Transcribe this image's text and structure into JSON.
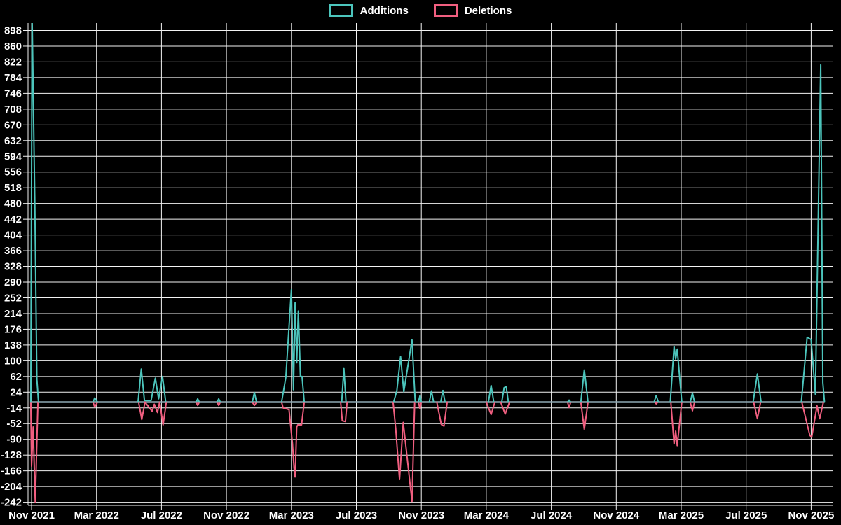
{
  "page": {
    "background": "#000000"
  },
  "legend": {
    "items": [
      {
        "label": "Additions",
        "color": "#4cc5bc"
      },
      {
        "label": "Deletions",
        "color": "#f15f80"
      }
    ]
  },
  "chart_data": {
    "type": "line",
    "title": "",
    "grid": true,
    "legend_position": "top-center",
    "background": "#000000",
    "colors": {
      "additions": "#4cc5bc",
      "deletions": "#f15f80",
      "zero_baseline": "#8da8b2",
      "gridline": "#f2f2f2",
      "axis_text": "#ffffff"
    },
    "x_axis": {
      "tick_labels": [
        "Nov 2021",
        "Mar 2022",
        "Jul 2022",
        "Nov 2022",
        "Mar 2023",
        "Jul 2023",
        "Nov 2023",
        "Mar 2024",
        "Jul 2024",
        "Nov 2024",
        "Mar 2025",
        "Jul 2025",
        "Nov 2025"
      ],
      "tick_month_offsets": [
        0,
        4,
        8,
        12,
        16,
        20,
        24,
        28,
        32,
        36,
        40,
        44,
        48
      ],
      "start_date": "2021-10-29",
      "end_date": "2025-11-26"
    },
    "y_axis": {
      "ticks": [
        -242,
        -204,
        -166,
        -128,
        -90,
        -52,
        -14,
        24,
        62,
        100,
        138,
        176,
        214,
        252,
        290,
        328,
        366,
        404,
        442,
        480,
        518,
        556,
        594,
        632,
        670,
        708,
        746,
        784,
        822,
        860,
        898
      ],
      "step": 38,
      "range_drawn": [
        -249,
        912
      ]
    },
    "baseline_value": 0,
    "series": [
      {
        "name": "Additions",
        "color": "#4cc5bc",
        "segments": [
          [
            [
              "2021-10-30",
              0
            ],
            [
              "2021-11-02",
              930
            ],
            [
              "2021-11-07",
              490
            ],
            [
              "2021-11-11",
              55
            ],
            [
              "2021-11-14",
              0
            ]
          ],
          [
            [
              "2022-02-25",
              0
            ],
            [
              "2022-02-28",
              10
            ],
            [
              "2022-03-03",
              0
            ]
          ],
          [
            [
              "2022-05-18",
              0
            ],
            [
              "2022-05-24",
              80
            ],
            [
              "2022-05-30",
              4
            ],
            [
              "2022-06-12",
              4
            ],
            [
              "2022-06-20",
              58
            ],
            [
              "2022-06-26",
              8
            ],
            [
              "2022-07-03",
              62
            ],
            [
              "2022-07-09",
              0
            ]
          ],
          [
            [
              "2022-09-05",
              0
            ],
            [
              "2022-09-08",
              8
            ],
            [
              "2022-09-11",
              0
            ]
          ],
          [
            [
              "2022-10-14",
              0
            ],
            [
              "2022-10-17",
              8
            ],
            [
              "2022-10-20",
              0
            ]
          ],
          [
            [
              "2022-12-19",
              0
            ],
            [
              "2022-12-23",
              23
            ],
            [
              "2022-12-27",
              0
            ]
          ],
          [
            [
              "2023-02-13",
              0
            ],
            [
              "2023-02-21",
              60
            ],
            [
              "2023-03-01",
              272
            ],
            [
              "2023-03-05",
              30
            ],
            [
              "2023-03-08",
              240
            ],
            [
              "2023-03-11",
              95
            ],
            [
              "2023-03-14",
              220
            ],
            [
              "2023-03-18",
              62
            ],
            [
              "2023-03-21",
              62
            ],
            [
              "2023-03-25",
              0
            ]
          ],
          [
            [
              "2023-06-04",
              0
            ],
            [
              "2023-06-08",
              81
            ],
            [
              "2023-06-12",
              0
            ]
          ],
          [
            [
              "2023-09-10",
              0
            ],
            [
              "2023-09-16",
              28
            ],
            [
              "2023-09-23",
              110
            ],
            [
              "2023-09-29",
              25
            ],
            [
              "2023-10-14",
              150
            ],
            [
              "2023-10-20",
              0
            ]
          ],
          [
            [
              "2023-10-26",
              0
            ],
            [
              "2023-10-29",
              16
            ],
            [
              "2023-11-01",
              0
            ]
          ],
          [
            [
              "2023-11-16",
              0
            ],
            [
              "2023-11-20",
              27
            ],
            [
              "2023-11-24",
              0
            ]
          ],
          [
            [
              "2023-12-07",
              0
            ],
            [
              "2023-12-11",
              28
            ],
            [
              "2023-12-15",
              0
            ]
          ],
          [
            [
              "2024-03-05",
              0
            ],
            [
              "2024-03-10",
              40
            ],
            [
              "2024-03-15",
              0
            ]
          ],
          [
            [
              "2024-03-30",
              0
            ],
            [
              "2024-04-04",
              35
            ],
            [
              "2024-04-08",
              37
            ],
            [
              "2024-04-12",
              0
            ]
          ],
          [
            [
              "2024-08-01",
              0
            ],
            [
              "2024-08-04",
              5
            ],
            [
              "2024-08-07",
              0
            ]
          ],
          [
            [
              "2024-08-26",
              0
            ],
            [
              "2024-09-02",
              78
            ],
            [
              "2024-09-09",
              0
            ]
          ],
          [
            [
              "2025-01-11",
              0
            ],
            [
              "2025-01-15",
              16
            ],
            [
              "2025-01-19",
              0
            ]
          ],
          [
            [
              "2025-02-11",
              0
            ],
            [
              "2025-02-18",
              134
            ],
            [
              "2025-02-21",
              104
            ],
            [
              "2025-02-24",
              128
            ],
            [
              "2025-03-02",
              0
            ]
          ],
          [
            [
              "2025-03-18",
              0
            ],
            [
              "2025-03-22",
              22
            ],
            [
              "2025-03-26",
              0
            ]
          ],
          [
            [
              "2025-07-14",
              0
            ],
            [
              "2025-07-22",
              68
            ],
            [
              "2025-07-29",
              0
            ]
          ],
          [
            [
              "2025-10-13",
              0
            ],
            [
              "2025-10-24",
              157
            ],
            [
              "2025-11-01",
              151
            ],
            [
              "2025-11-09",
              19
            ],
            [
              "2025-11-19",
              815
            ],
            [
              "2025-11-23",
              47
            ],
            [
              "2025-11-26",
              0
            ]
          ]
        ]
      },
      {
        "name": "Deletions",
        "color": "#f15f80",
        "segments": [
          [
            [
              "2021-10-30",
              0
            ],
            [
              "2021-11-01",
              -155
            ],
            [
              "2021-11-04",
              -60
            ],
            [
              "2021-11-08",
              -242
            ],
            [
              "2021-11-13",
              0
            ]
          ],
          [
            [
              "2022-02-25",
              0
            ],
            [
              "2022-02-28",
              -12
            ],
            [
              "2022-03-03",
              0
            ]
          ],
          [
            [
              "2022-05-19",
              0
            ],
            [
              "2022-05-25",
              -42
            ],
            [
              "2022-05-31",
              0
            ],
            [
              "2022-06-14",
              -22
            ],
            [
              "2022-06-18",
              -5
            ],
            [
              "2022-06-24",
              -25
            ],
            [
              "2022-06-28",
              0
            ],
            [
              "2022-07-04",
              -55
            ],
            [
              "2022-07-08",
              -20
            ],
            [
              "2022-07-10",
              0
            ]
          ],
          [
            [
              "2022-09-05",
              0
            ],
            [
              "2022-09-08",
              -8
            ],
            [
              "2022-09-11",
              0
            ]
          ],
          [
            [
              "2022-10-14",
              0
            ],
            [
              "2022-10-17",
              -8
            ],
            [
              "2022-10-20",
              0
            ]
          ],
          [
            [
              "2022-12-19",
              0
            ],
            [
              "2022-12-23",
              -8
            ],
            [
              "2022-12-27",
              0
            ]
          ],
          [
            [
              "2023-02-13",
              0
            ],
            [
              "2023-02-16",
              -14
            ],
            [
              "2023-02-27",
              -18
            ],
            [
              "2023-03-03",
              -100
            ],
            [
              "2023-03-06",
              -159
            ],
            [
              "2023-03-08",
              -181
            ],
            [
              "2023-03-11",
              -60
            ],
            [
              "2023-03-13",
              -55
            ],
            [
              "2023-03-20",
              -55
            ],
            [
              "2023-03-25",
              0
            ]
          ],
          [
            [
              "2023-06-02",
              0
            ],
            [
              "2023-06-05",
              -45
            ],
            [
              "2023-06-11",
              -47
            ],
            [
              "2023-06-14",
              0
            ]
          ],
          [
            [
              "2023-09-09",
              0
            ],
            [
              "2023-09-14",
              -65
            ],
            [
              "2023-09-21",
              -187
            ],
            [
              "2023-09-28",
              -49
            ],
            [
              "2023-10-14",
              -240
            ],
            [
              "2023-10-19",
              0
            ]
          ],
          [
            [
              "2023-10-26",
              0
            ],
            [
              "2023-10-29",
              -16
            ],
            [
              "2023-11-01",
              0
            ]
          ],
          [
            [
              "2023-11-30",
              0
            ],
            [
              "2023-12-08",
              -54
            ],
            [
              "2023-12-13",
              -58
            ],
            [
              "2023-12-19",
              0
            ]
          ],
          [
            [
              "2024-03-01",
              0
            ],
            [
              "2024-03-10",
              -30
            ],
            [
              "2024-03-17",
              0
            ]
          ],
          [
            [
              "2024-03-28",
              0
            ],
            [
              "2024-04-06",
              -29
            ],
            [
              "2024-04-14",
              0
            ]
          ],
          [
            [
              "2024-08-01",
              0
            ],
            [
              "2024-08-04",
              -13
            ],
            [
              "2024-08-07",
              0
            ]
          ],
          [
            [
              "2024-08-26",
              0
            ],
            [
              "2024-09-02",
              -66
            ],
            [
              "2024-09-09",
              0
            ]
          ],
          [
            [
              "2025-01-12",
              0
            ],
            [
              "2025-01-15",
              -4
            ],
            [
              "2025-01-18",
              0
            ]
          ],
          [
            [
              "2025-02-12",
              0
            ],
            [
              "2025-02-18",
              -101
            ],
            [
              "2025-02-21",
              -70
            ],
            [
              "2025-02-24",
              -105
            ],
            [
              "2025-03-02",
              0
            ]
          ],
          [
            [
              "2025-03-18",
              0
            ],
            [
              "2025-03-22",
              -21
            ],
            [
              "2025-03-26",
              0
            ]
          ],
          [
            [
              "2025-07-15",
              0
            ],
            [
              "2025-07-22",
              -40
            ],
            [
              "2025-07-28",
              0
            ]
          ],
          [
            [
              "2025-10-14",
              0
            ],
            [
              "2025-10-29",
              -80
            ],
            [
              "2025-11-02",
              -85
            ],
            [
              "2025-11-12",
              -9
            ],
            [
              "2025-11-17",
              -40
            ],
            [
              "2025-11-24",
              0
            ]
          ]
        ]
      }
    ]
  }
}
